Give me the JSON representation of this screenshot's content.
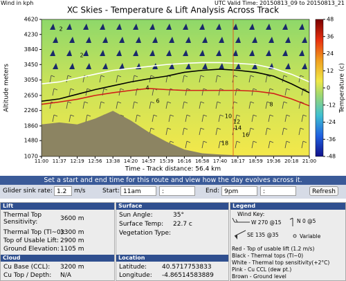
{
  "header": {
    "wind_unit": "Wind in kph",
    "valid_time": "UTC Valid Time: 20150813_09 to 20150813_21"
  },
  "chart_data": {
    "type": "line",
    "title": "XC Skies - Temperature & Lift Analysis Across Track",
    "x_label": "Time - Track distance: 56.4 km",
    "y_label": "Altitude meters",
    "categories": [
      "11:00",
      "11:37",
      "12:19",
      "12:56",
      "13:38",
      "14:20",
      "14:57",
      "15:39",
      "16:16",
      "16:58",
      "17:40",
      "18:17",
      "18:59",
      "19:36",
      "20:18",
      "21:00"
    ],
    "ylim": [
      1070,
      4620
    ],
    "yticks": [
      1070,
      1480,
      1860,
      2260,
      2650,
      3050,
      3450,
      3840,
      4230,
      4620
    ],
    "series": [
      {
        "color": "#8c8462",
        "values": [
          1900,
          1950,
          1900,
          2050,
          2250,
          2000,
          1700,
          1450,
          1250,
          1150,
          1120,
          1100,
          1100,
          1100,
          1100,
          1100
        ]
      },
      {
        "color": "#ffffff",
        "values": [
          2950,
          3000,
          3100,
          3200,
          3300,
          3350,
          3400,
          3450,
          3480,
          3500,
          3500,
          3480,
          3450,
          3350,
          3200,
          3000
        ]
      },
      {
        "color": "#000000",
        "values": [
          2500,
          2560,
          2680,
          2800,
          2900,
          3000,
          3080,
          3150,
          3250,
          3300,
          3330,
          3300,
          3250,
          3150,
          2950,
          2720
        ]
      },
      {
        "color": "#d0201a",
        "values": [
          2420,
          2480,
          2550,
          2650,
          2720,
          2780,
          2830,
          2800,
          2780,
          2780,
          2780,
          2780,
          2760,
          2700,
          2560,
          2380
        ]
      }
    ],
    "colorbar": {
      "label": "Temperature (c)",
      "lim": [
        -48,
        48
      ],
      "ticks": [
        48,
        36,
        24,
        12,
        0,
        -12,
        -24,
        -36,
        -48
      ]
    },
    "contour_labels": [
      2,
      2,
      4,
      6,
      8,
      10,
      12,
      14,
      16,
      18
    ]
  },
  "controls": {
    "banner": "Set a start and end time for this route and view how the day evolves across it.",
    "sink_label": "Glider sink rate:",
    "sink_value": "1.2",
    "sink_unit": "m/s",
    "start_label": "Start:",
    "start_hour": "11am",
    "start_min": ":",
    "end_label": "End:",
    "end_hour": "9pm",
    "end_min": ":",
    "refresh": "Refresh"
  },
  "lift": {
    "title": "Lift",
    "rows": [
      [
        "Thermal Top Sensitivity:",
        "3600 m"
      ],
      [
        "Thermal Top (Tl~0):",
        "3300 m"
      ],
      [
        "Top of Usable Lift:",
        "2900 m"
      ],
      [
        "Ground Elevation:",
        "1105 m"
      ]
    ]
  },
  "cloud": {
    "title": "Cloud",
    "rows": [
      [
        "Cu Base (CCL):",
        "3200 m"
      ],
      [
        "Cu Top / Depth:",
        "N/A"
      ]
    ]
  },
  "surface": {
    "title": "Surface",
    "rows": [
      [
        "Sun Angle:",
        "35°"
      ],
      [
        "Surface Temp:",
        "22.7 c"
      ]
    ],
    "vegetation": "Vegetation Type:"
  },
  "location": {
    "title": "Location",
    "rows": [
      [
        "Latitude:",
        "40.5717753833"
      ],
      [
        "Longitude:",
        "-4.86514583889"
      ]
    ]
  },
  "legend": {
    "title": "Legend",
    "wind_key": "Wind Key:",
    "w": "W 270 @15",
    "n": "N 0 @5",
    "se": "SE 135 @35",
    "variable": "Variable",
    "lines": [
      "Red - Top of usable lift (1.2 m/s)",
      "Black - Thermal tops (Tl~0)",
      "White - Thermal top sensitivity(+2°C)",
      "Pink - Cu CCL (dew pt.)",
      "Brown - Ground level"
    ]
  }
}
